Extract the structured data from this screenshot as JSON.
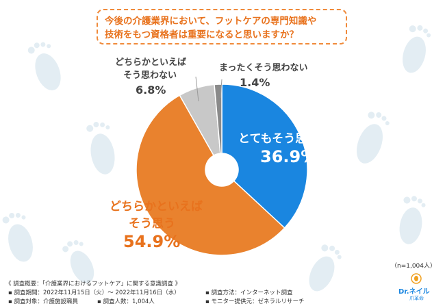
{
  "title": {
    "line1": "今後の介護業界において、フットケアの専門知識や",
    "line2": "技術をもつ資格者は重要になると思いますか？"
  },
  "chart_data": {
    "type": "pie",
    "donut": true,
    "slices": [
      {
        "label_lines": [
          "とてもそう思う"
        ],
        "value": 36.9,
        "value_text": "36.9%",
        "color": "#1a86e0"
      },
      {
        "label_lines": [
          "どちらかといえば",
          "そう思う"
        ],
        "value": 54.9,
        "value_text": "54.9%",
        "color": "#e9822e"
      },
      {
        "label_lines": [
          "どちらかといえば",
          "そう思わない"
        ],
        "value": 6.8,
        "value_text": "6.8%",
        "color": "#c8c8c8"
      },
      {
        "label_lines": [
          "まったくそう思わない"
        ],
        "value": 1.4,
        "value_text": "1.4%",
        "color": "#8a8a8a"
      }
    ],
    "n_label": "（n=1,004人）"
  },
  "footnotes": {
    "survey": "《 調査概要：「介護業界におけるフットケア」に関する意識調査 》",
    "period": "▪ 調査期間：2022年11月15日（火）〜 2022年11月16日（水）",
    "method": "▪ 調査方法：インターネット調査",
    "target": "▪ 調査対象：介護施設職員",
    "count": "▪ 調査人数：1,004人",
    "provider": "▪ モニター提供元：ゼネラルリサーチ"
  },
  "logo": {
    "text": "Dr.ネイル",
    "subtext": "爪革命"
  }
}
